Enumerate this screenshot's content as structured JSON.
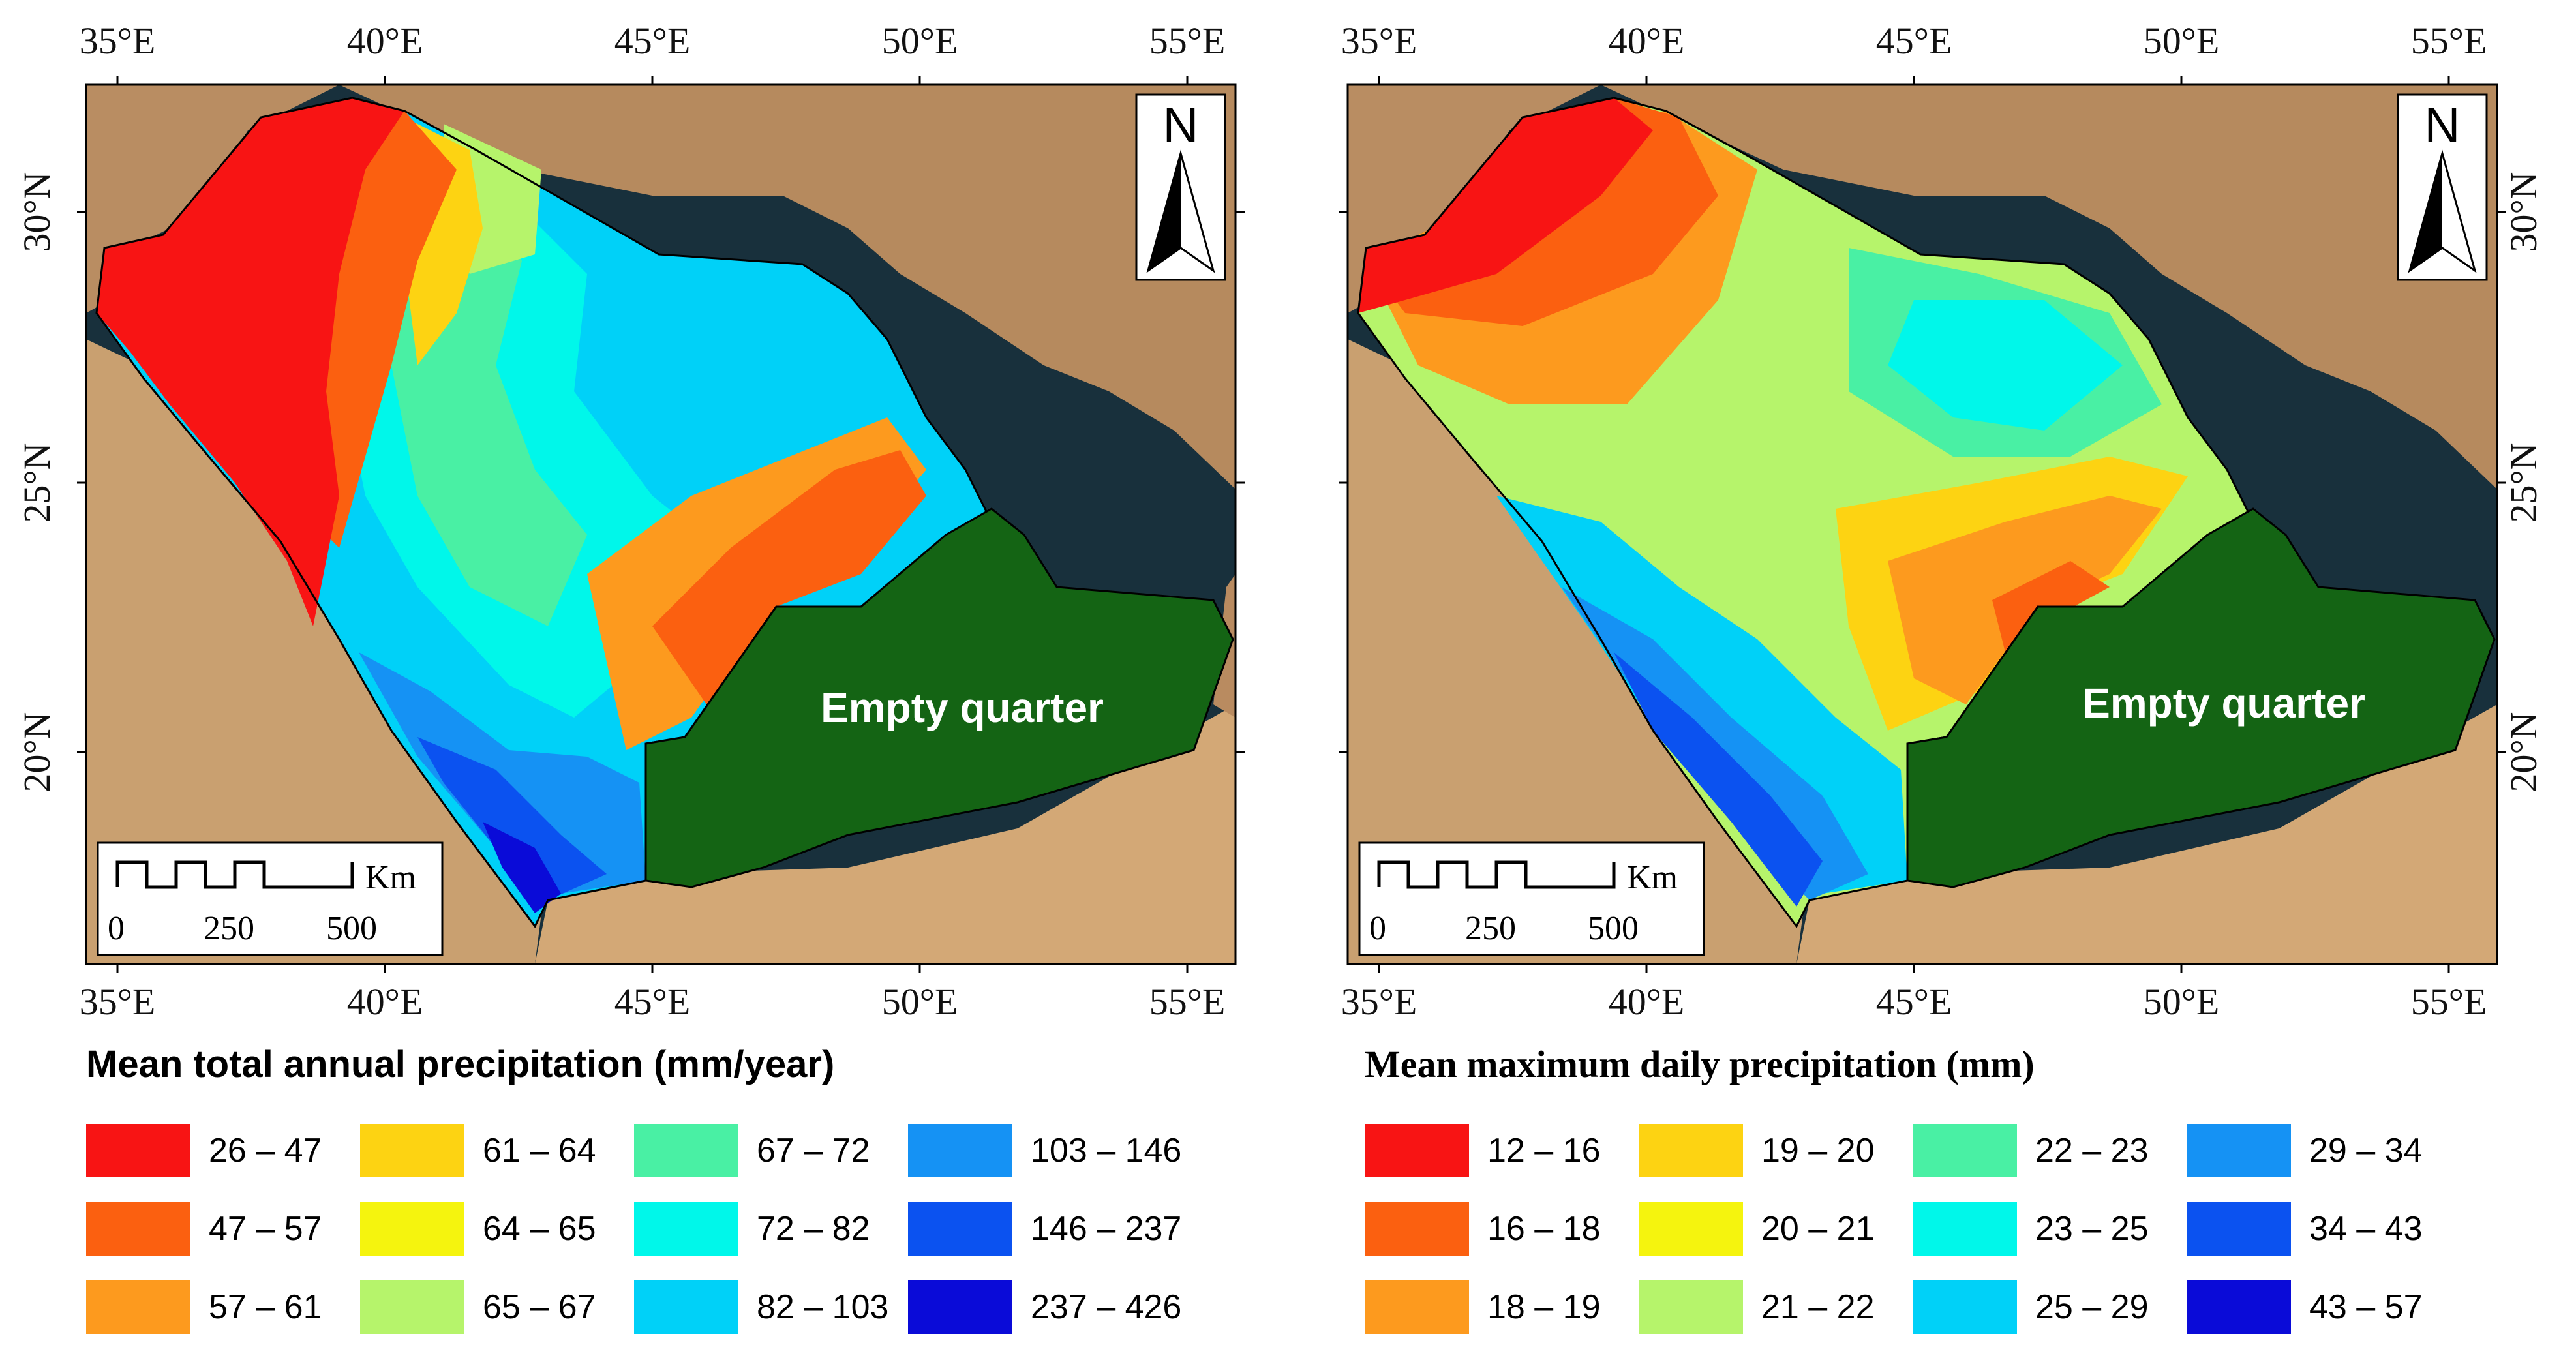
{
  "panels": [
    {
      "id": "left",
      "title": "Mean total annual precipitation (mm/year)",
      "region_label": "Empty quarter",
      "north_label": "N",
      "scale": {
        "labels": [
          "0",
          "250",
          "500"
        ],
        "unit": "Km"
      },
      "lon_ticks": [
        "35°E",
        "40°E",
        "45°E",
        "50°E",
        "55°E"
      ],
      "lat_ticks": [
        "30°N",
        "25°N",
        "20°N"
      ],
      "legend": [
        {
          "label": "26 – 47",
          "color": "#f81414"
        },
        {
          "label": "47 – 57",
          "color": "#fb6010"
        },
        {
          "label": "57 – 61",
          "color": "#fd9a1e"
        },
        {
          "label": "61 – 64",
          "color": "#fdd312"
        },
        {
          "label": "64 – 65",
          "color": "#f5f40e"
        },
        {
          "label": "65 – 67",
          "color": "#b6f46b"
        },
        {
          "label": "67 – 72",
          "color": "#49f0a4"
        },
        {
          "label": "72 – 82",
          "color": "#00f7ea"
        },
        {
          "label": "82 – 103",
          "color": "#00d1f8"
        },
        {
          "label": "103 – 146",
          "color": "#1592f4"
        },
        {
          "label": "146 – 237",
          "color": "#0b52f0"
        },
        {
          "label": "237 – 426",
          "color": "#0a0bd8"
        }
      ]
    },
    {
      "id": "right",
      "title": "Mean maximum daily precipitation (mm)",
      "region_label": "Empty quarter",
      "north_label": "N",
      "scale": {
        "labels": [
          "0",
          "250",
          "500"
        ],
        "unit": "Km"
      },
      "lon_ticks": [
        "35°E",
        "40°E",
        "45°E",
        "50°E",
        "55°E"
      ],
      "lat_ticks": [
        "30°N",
        "25°N",
        "20°N"
      ],
      "legend": [
        {
          "label": "12 – 16",
          "color": "#f81414"
        },
        {
          "label": "16 – 18",
          "color": "#fb6010"
        },
        {
          "label": "18 – 19",
          "color": "#fd9a1e"
        },
        {
          "label": "19 – 20",
          "color": "#fdd312"
        },
        {
          "label": "20 – 21",
          "color": "#f5f40e"
        },
        {
          "label": "21 – 22",
          "color": "#b6f46b"
        },
        {
          "label": "22 – 23",
          "color": "#49f0a4"
        },
        {
          "label": "23 – 25",
          "color": "#00f7ea"
        },
        {
          "label": "25 – 29",
          "color": "#00d1f8"
        },
        {
          "label": "29 – 34",
          "color": "#1592f4"
        },
        {
          "label": "34 – 43",
          "color": "#0b52f0"
        },
        {
          "label": "43 – 57",
          "color": "#0a0bd8"
        }
      ]
    }
  ],
  "colors": {
    "sea": "#18303c",
    "desert": "#c89a6c",
    "empty_quarter": "#146414",
    "outline": "#000000"
  }
}
